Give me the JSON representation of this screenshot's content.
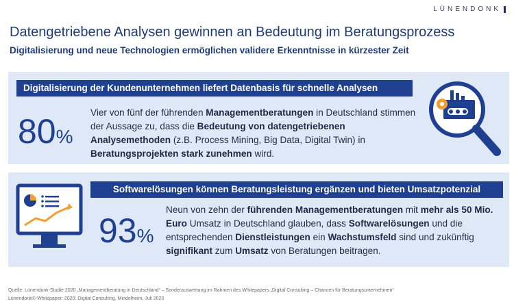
{
  "brand": {
    "logo_text": "LÜNENDONK"
  },
  "header": {
    "title": "Datengetriebene Analysen gewinnen an Bedeutung im Beratungsprozess",
    "subtitle": "Digitalisierung und neue Technologien ermöglichen validere Erkenntnisse in kürzester Zeit"
  },
  "panel1": {
    "banner": "Digitalisierung der Kundenunternehmen liefert Datenbasis für schnelle Analysen",
    "big_number": "80",
    "percent_sign": "%",
    "text": [
      {
        "t": "Vier von fünf der führenden ",
        "b": false
      },
      {
        "t": "Managementberatungen",
        "b": true
      },
      {
        "t": " in Deutschland stimmen der Aussage zu, dass die ",
        "b": false
      },
      {
        "t": "Bedeutung von datengetriebenen Analysemethoden",
        "b": true
      },
      {
        "t": " (z.B. Process Mining, Big Data, Digital Twin) in ",
        "b": false
      },
      {
        "t": "Beratungsprojekten stark zunehmen",
        "b": true
      },
      {
        "t": " wird.",
        "b": false
      }
    ],
    "icon": "magnifier-factory-icon"
  },
  "panel2": {
    "banner": "Softwarelösungen können Beratungsleistung ergänzen und bieten Umsatzpotenzial",
    "big_number": "93",
    "percent_sign": "%",
    "text": [
      {
        "t": "Neun von zehn der ",
        "b": false
      },
      {
        "t": "führenden Managementberatungen",
        "b": true
      },
      {
        "t": " mit ",
        "b": false
      },
      {
        "t": "mehr als 50 Mio. Euro",
        "b": true
      },
      {
        "t": " Umsatz in Deutschland glauben, dass ",
        "b": false
      },
      {
        "t": "Softwarelösungen",
        "b": true
      },
      {
        "t": " und die entsprechenden ",
        "b": false
      },
      {
        "t": "Dienstleistungen",
        "b": true
      },
      {
        "t": " ein ",
        "b": false
      },
      {
        "t": "Wachstumsfeld",
        "b": true
      },
      {
        "t": " sind und zukünftig ",
        "b": false
      },
      {
        "t": "signifikant",
        "b": true
      },
      {
        "t": " zum ",
        "b": false
      },
      {
        "t": "Umsatz",
        "b": true
      },
      {
        "t": " von Beratungen beitragen.",
        "b": false
      }
    ],
    "icon": "monitor-chart-icon"
  },
  "footer": {
    "source": "Quelle: Lünendonk-Studie 2020 „Managementberatung in Deutschland“ – Sonderauswertung im Rahmen des Whitepapers „Digital Consulting – Chancen für Beratungsunternehmen“",
    "citation": "Lünendonk®-Whitepaper: 2020: Digital Consulting, Mindelheim, Juli 2020"
  },
  "colors": {
    "navy": "#1f3f91",
    "panel_bg": "#dfe8f7",
    "title": "#1f3a7a",
    "accent_orange": "#f0a030"
  }
}
